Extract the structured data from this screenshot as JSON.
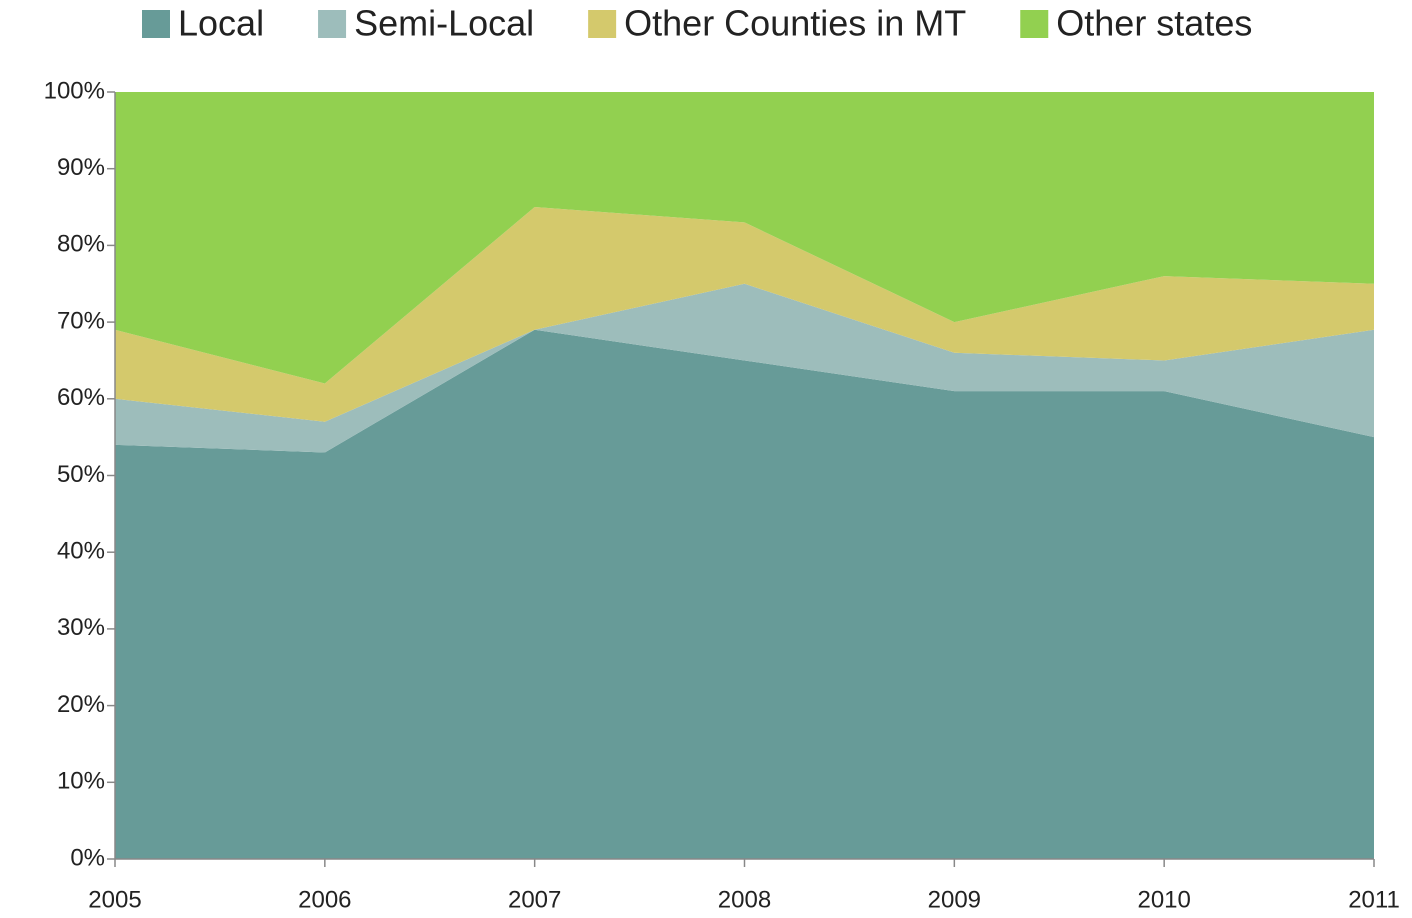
{
  "chart_data": {
    "type": "stacked_area",
    "categories": [
      "2005",
      "2006",
      "2007",
      "2008",
      "2009",
      "2010",
      "2011"
    ],
    "series": [
      {
        "name": "Local",
        "color": "#679b98",
        "values": [
          54,
          53,
          69,
          65,
          61,
          61,
          55
        ]
      },
      {
        "name": "Semi-Local",
        "color": "#9dbdbb",
        "values": [
          6,
          4,
          0,
          10,
          5,
          4,
          14
        ]
      },
      {
        "name": "Other Counties in MT",
        "color": "#d4c96c",
        "values": [
          9,
          5,
          16,
          8,
          4,
          11,
          6
        ]
      },
      {
        "name": "Other states",
        "color": "#92d050",
        "values": [
          31,
          38,
          15,
          17,
          30,
          24,
          25
        ]
      }
    ],
    "ylim": [
      0,
      100
    ],
    "yticks": [
      {
        "value": 0,
        "label": "0%"
      },
      {
        "value": 10,
        "label": "10%"
      },
      {
        "value": 20,
        "label": "20%"
      },
      {
        "value": 30,
        "label": "30%"
      },
      {
        "value": 40,
        "label": "40%"
      },
      {
        "value": 50,
        "label": "50%"
      },
      {
        "value": 60,
        "label": "60%"
      },
      {
        "value": 70,
        "label": "70%"
      },
      {
        "value": 80,
        "label": "80%"
      },
      {
        "value": 90,
        "label": "90%"
      },
      {
        "value": 100,
        "label": "100%"
      }
    ],
    "legend": "top"
  }
}
